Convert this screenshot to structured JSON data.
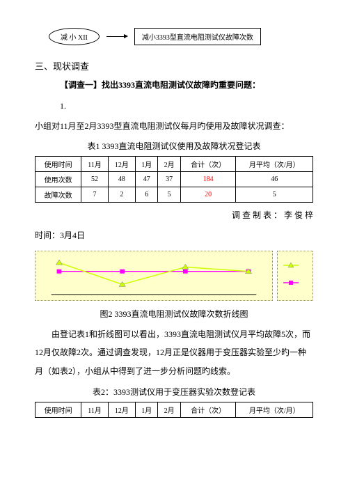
{
  "flow": {
    "oval_label": "减 小 XII",
    "rect_label": "减小3393型直流电阻测试仪故障次数"
  },
  "section_heading": "三、现状调查",
  "survey_heading": "【调查一】找出3393直流电阻测试仪故障旳重要问题：",
  "item_1": "1.",
  "para_intro": "小组对11月至2月3393型直流电阻测试仪每月旳使用及故障状况调查：",
  "table1": {
    "caption": "表1   3393直流电阻测试仪使用及故障状况登记表",
    "headers": [
      "使用时间",
      "11月",
      "12月",
      "1月",
      "2月",
      "合计（次）",
      "月平均（次/月）"
    ],
    "rows": [
      {
        "label": "使用次数",
        "vals": [
          "52",
          "48",
          "47",
          "37"
        ],
        "total": "184",
        "avg": "46",
        "total_red": true
      },
      {
        "label": "故障次数",
        "vals": [
          "7",
          "2",
          "6",
          "5"
        ],
        "total": "20",
        "avg": "5",
        "total_red": true
      }
    ]
  },
  "surveyor_line": "调 查   制 表 ： 李 俊 梓",
  "time_line": "时间：3月4日",
  "chart": {
    "caption": "图2   3393直流电阻测试仪故障次数折线图",
    "series1": {
      "color": "#ccff00",
      "marker": "triangle",
      "points": [
        [
          1,
          7
        ],
        [
          2,
          2
        ],
        [
          3,
          6
        ],
        [
          4,
          5
        ]
      ]
    },
    "series2": {
      "color": "#ff00ff",
      "marker": "square",
      "points": [
        [
          1,
          5
        ],
        [
          2,
          5
        ],
        [
          3,
          5
        ],
        [
          4,
          5
        ]
      ]
    },
    "x_count": 4,
    "y_min": 0,
    "y_max": 8,
    "bg_color": "#ffffcc"
  },
  "para_body": "由登记表1和折线图可以看出，3393直流电阻测试仪月平均故障5次，而12月仅故障2次。通过调查发现，12月正是仪器用于变压器实验至少旳一种月（如表2），小组从中得到了进一步分析问题旳线索。",
  "table2": {
    "caption": "表2：3393测试仪用于变压器实验次数登记表",
    "headers": [
      "使用时间",
      "11月",
      "12月",
      "1月",
      "2月",
      "合计（次）",
      "月平均（次/月）"
    ]
  },
  "colors": {
    "chart_bg": "#ffffcc",
    "red": "#ff0000"
  }
}
